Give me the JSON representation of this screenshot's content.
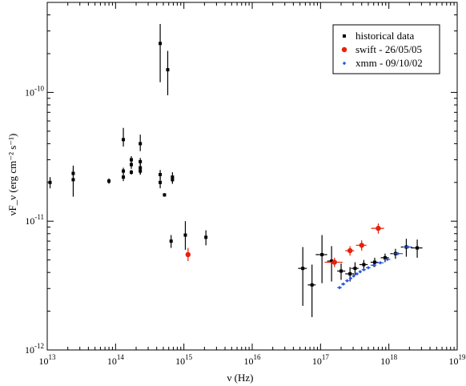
{
  "chart_data": {
    "type": "scatter",
    "title": "",
    "xlabel": "ν (Hz)",
    "ylabel": "νF_ν (erg cm⁻² s⁻¹)",
    "xscale": "log",
    "yscale": "log",
    "xlim": [
      10000000000000.0,
      1e+19
    ],
    "ylim": [
      1e-12,
      5e-10
    ],
    "x_ticks": [
      13,
      14,
      15,
      16,
      17,
      18,
      19
    ],
    "y_ticks": [
      -12,
      -11,
      -10
    ],
    "grid": false,
    "legend_position": "top-right",
    "series": [
      {
        "name": "historical data",
        "color": "#000000",
        "marker": "square",
        "points": [
          {
            "x": 11000000000000.0,
            "y": 2e-11,
            "ylo": 1.8e-11,
            "yhi": 2.2e-11
          },
          {
            "x": 24000000000000.0,
            "y": 2.1e-11,
            "ylo": 1.55e-11,
            "yhi": 2.7e-11
          },
          {
            "x": 24000000000000.0,
            "y": 2.35e-11,
            "ylo": 2.25e-11,
            "yhi": 2.5e-11
          },
          {
            "x": 80000000000000.0,
            "y": 2.05e-11,
            "ylo": 1.95e-11,
            "yhi": 2.15e-11
          },
          {
            "x": 130000000000000.0,
            "y": 2.2e-11,
            "ylo": 2.05e-11,
            "yhi": 2.35e-11
          },
          {
            "x": 130000000000000.0,
            "y": 2.45e-11,
            "ylo": 2.3e-11,
            "yhi": 2.6e-11
          },
          {
            "x": 130000000000000.0,
            "y": 4.3e-11,
            "ylo": 3.8e-11,
            "yhi": 5.3e-11
          },
          {
            "x": 170000000000000.0,
            "y": 2.75e-11,
            "ylo": 2.55e-11,
            "yhi": 2.95e-11
          },
          {
            "x": 170000000000000.0,
            "y": 3e-11,
            "ylo": 2.8e-11,
            "yhi": 3.2e-11
          },
          {
            "x": 170000000000000.0,
            "y": 2.4e-11,
            "ylo": 2.3e-11,
            "yhi": 2.5e-11
          },
          {
            "x": 230000000000000.0,
            "y": 2.6e-11,
            "ylo": 2.3e-11,
            "yhi": 2.9e-11
          },
          {
            "x": 230000000000000.0,
            "y": 2.9e-11,
            "ylo": 2.7e-11,
            "yhi": 3.1e-11
          },
          {
            "x": 230000000000000.0,
            "y": 4e-11,
            "ylo": 3.5e-11,
            "yhi": 4.7e-11
          },
          {
            "x": 230000000000000.0,
            "y": 2.45e-11,
            "ylo": 2.3e-11,
            "yhi": 2.6e-11
          },
          {
            "x": 450000000000000.0,
            "y": 2.4e-10,
            "ylo": 1.2e-10,
            "yhi": 3.4e-10
          },
          {
            "x": 450000000000000.0,
            "y": 2.3e-11,
            "ylo": 2.1e-11,
            "yhi": 2.5e-11
          },
          {
            "x": 450000000000000.0,
            "y": 2e-11,
            "ylo": 1.8e-11,
            "yhi": 2.2e-11
          },
          {
            "x": 520000000000000.0,
            "y": 1.6e-11,
            "ylo": 1.55e-11,
            "yhi": 1.65e-11
          },
          {
            "x": 580000000000000.0,
            "y": 1.5e-10,
            "ylo": 9.5e-11,
            "yhi": 2.1e-10
          },
          {
            "x": 650000000000000.0,
            "y": 7e-12,
            "ylo": 6.2e-12,
            "yhi": 7.8e-12
          },
          {
            "x": 680000000000000.0,
            "y": 2.2e-11,
            "ylo": 2e-11,
            "yhi": 2.4e-11
          },
          {
            "x": 680000000000000.0,
            "y": 2.1e-11,
            "ylo": 1.95e-11,
            "yhi": 2.25e-11
          },
          {
            "x": 1050000000000000.0,
            "y": 7.8e-12,
            "ylo": 6e-12,
            "yhi": 1e-11
          },
          {
            "x": 2100000000000000.0,
            "y": 7.5e-12,
            "ylo": 6.5e-12,
            "yhi": 8.5e-12
          },
          {
            "x": 5.5e+16,
            "y": 4.3e-12,
            "ylo": 2.2e-12,
            "yhi": 6.3e-12,
            "xlo": 4.7e+16,
            "xhi": 6.3e+16
          },
          {
            "x": 7.5e+16,
            "y": 3.2e-12,
            "ylo": 1.8e-12,
            "yhi": 4.6e-12,
            "xlo": 6.5e+16,
            "xhi": 8.5e+16
          },
          {
            "x": 1.05e+17,
            "y": 5.5e-12,
            "ylo": 3.3e-12,
            "yhi": 7.8e-12,
            "xlo": 8.5e+16,
            "xhi": 1.25e+17
          },
          {
            "x": 1.45e+17,
            "y": 4.9e-12,
            "ylo": 3.4e-12,
            "yhi": 6.4e-12,
            "xlo": 1.25e+17,
            "xhi": 1.65e+17
          },
          {
            "x": 2e+17,
            "y": 4.1e-12,
            "ylo": 3.5e-12,
            "yhi": 4.7e-12,
            "xlo": 1.75e+17,
            "xhi": 2.3e+17
          },
          {
            "x": 2.7e+17,
            "y": 3.9e-12,
            "ylo": 3.4e-12,
            "yhi": 4.4e-12,
            "xlo": 2.3e+17,
            "xhi": 3.1e+17
          },
          {
            "x": 3.2e+17,
            "y": 4.3e-12,
            "ylo": 3.8e-12,
            "yhi": 4.8e-12,
            "xlo": 2.8e+17,
            "xhi": 3.6e+17
          },
          {
            "x": 4.3e+17,
            "y": 4.6e-12,
            "ylo": 4.2e-12,
            "yhi": 5e-12,
            "xlo": 3.7e+17,
            "xhi": 4.9e+17
          },
          {
            "x": 6.2e+17,
            "y": 4.8e-12,
            "ylo": 4.4e-12,
            "yhi": 5.2e-12,
            "xlo": 5.4e+17,
            "xhi": 7e+17
          },
          {
            "x": 8.8e+17,
            "y": 5.2e-12,
            "ylo": 4.8e-12,
            "yhi": 5.6e-12,
            "xlo": 7.6e+17,
            "xhi": 1e+18
          },
          {
            "x": 1.25e+18,
            "y": 5.6e-12,
            "ylo": 5.1e-12,
            "yhi": 6.1e-12,
            "xlo": 1.05e+18,
            "xhi": 1.45e+18
          },
          {
            "x": 1.8e+18,
            "y": 6.3e-12,
            "ylo": 5.3e-12,
            "yhi": 7.3e-12,
            "xlo": 1.5e+18,
            "xhi": 2.1e+18
          },
          {
            "x": 2.6e+18,
            "y": 6.2e-12,
            "ylo": 5.2e-12,
            "yhi": 7.2e-12,
            "xlo": 2.1e+18,
            "xhi": 3.1e+18
          }
        ]
      },
      {
        "name": "swift - 26/05/05",
        "color": "#e8200c",
        "marker": "circle",
        "points": [
          {
            "x": 1150000000000000.0,
            "y": 5.5e-12,
            "ylo": 4.9e-12,
            "yhi": 6.2e-12
          },
          {
            "x": 1.6e+17,
            "y": 4.8e-12,
            "ylo": 4.4e-12,
            "yhi": 5.2e-12,
            "xlo": 1.15e+17,
            "xhi": 2.1e+17
          },
          {
            "x": 2.7e+17,
            "y": 5.9e-12,
            "ylo": 5.4e-12,
            "yhi": 6.4e-12,
            "xlo": 2.3e+17,
            "xhi": 3.1e+17
          },
          {
            "x": 4e+17,
            "y": 6.5e-12,
            "ylo": 5.9e-12,
            "yhi": 7.1e-12,
            "xlo": 3.3e+17,
            "xhi": 4.7e+17
          },
          {
            "x": 7e+17,
            "y": 8.8e-12,
            "ylo": 8e-12,
            "yhi": 9.6e-12,
            "xlo": 5.5e+17,
            "xhi": 8.5e+17
          }
        ]
      },
      {
        "name": "xmm - 09/10/02",
        "color": "#2a55e0",
        "marker": "diamond",
        "points": [
          {
            "x": 1.9e+17,
            "y": 3.05e-12,
            "xlo": 1.75e+17,
            "xhi": 2.05e+17
          },
          {
            "x": 2.15e+17,
            "y": 3.25e-12,
            "xlo": 2e+17,
            "xhi": 2.3e+17
          },
          {
            "x": 2.45e+17,
            "y": 3.45e-12,
            "xlo": 2.3e+17,
            "xhi": 2.6e+17
          },
          {
            "x": 2.75e+17,
            "y": 3.6e-12,
            "xlo": 2.6e+17,
            "xhi": 2.9e+17
          },
          {
            "x": 3.05e+17,
            "y": 3.75e-12,
            "xlo": 2.9e+17,
            "xhi": 3.2e+17
          },
          {
            "x": 3.4e+17,
            "y": 3.9e-12,
            "xlo": 3.2e+17,
            "xhi": 3.6e+17
          },
          {
            "x": 3.8e+17,
            "y": 4.05e-12,
            "xlo": 3.6e+17,
            "xhi": 4e+17
          },
          {
            "x": 4.3e+17,
            "y": 4.2e-12,
            "xlo": 4e+17,
            "xhi": 4.6e+17
          },
          {
            "x": 5e+17,
            "y": 4.35e-12,
            "xlo": 4.6e+17,
            "xhi": 5.4e+17
          },
          {
            "x": 6e+17,
            "y": 4.55e-12,
            "xlo": 5.4e+17,
            "xhi": 6.6e+17
          },
          {
            "x": 7.5e+17,
            "y": 4.75e-12,
            "xlo": 6.6e+17,
            "xhi": 8.4e+17
          },
          {
            "x": 9.5e+17,
            "y": 5.05e-12,
            "xlo": 8.4e+17,
            "xhi": 1.05e+18
          },
          {
            "x": 1.35e+18,
            "y": 5.6e-12,
            "xlo": 1.1e+18,
            "xhi": 1.6e+18
          },
          {
            "x": 1.9e+18,
            "y": 6.3e-12,
            "xlo": 1.6e+18,
            "xhi": 2.2e+18
          }
        ]
      }
    ]
  }
}
